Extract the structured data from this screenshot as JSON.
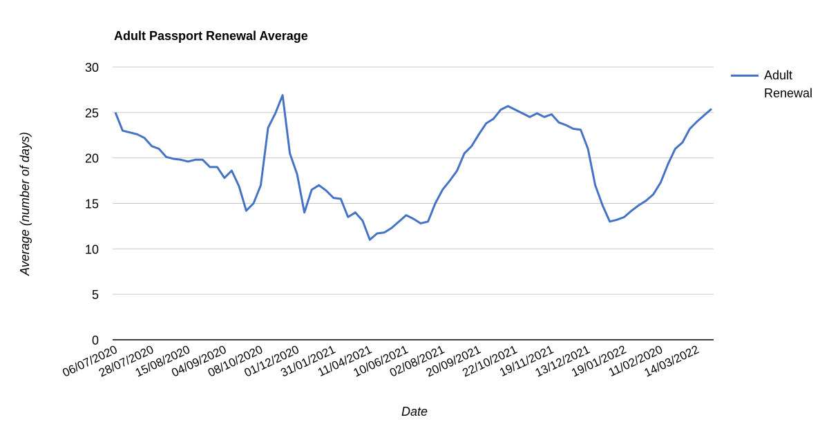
{
  "chart_data": {
    "type": "line",
    "title": "Adult Passport Renewal Average",
    "x_label": "Date",
    "y_label": "Average (number of days)",
    "categories": [
      "06/07/2020",
      null,
      null,
      null,
      null,
      "28/07/2020",
      null,
      null,
      null,
      null,
      "15/08/2020",
      null,
      null,
      null,
      null,
      "04/09/2020",
      null,
      null,
      null,
      null,
      "08/10/2020",
      null,
      null,
      null,
      null,
      "01/12/2020",
      null,
      null,
      null,
      null,
      "31/01/2021",
      null,
      null,
      null,
      null,
      "11/04/2021",
      null,
      null,
      null,
      null,
      "10/06/2021",
      null,
      null,
      null,
      null,
      "02/08/2021",
      null,
      null,
      null,
      null,
      "20/09/2021",
      null,
      null,
      null,
      null,
      "22/10/2021",
      null,
      null,
      null,
      null,
      "19/11/2021",
      null,
      null,
      null,
      null,
      "13/12/2021",
      null,
      null,
      null,
      null,
      "19/01/2022",
      null,
      null,
      null,
      null,
      "11/02/2020",
      null,
      null,
      null,
      null,
      "14/03/2022",
      null,
      null
    ],
    "series": [
      {
        "name": "Adult Renewal",
        "color": "#4472c4",
        "values": [
          25.0,
          23.0,
          22.8,
          22.6,
          22.2,
          21.3,
          21.0,
          20.1,
          19.9,
          19.8,
          19.6,
          19.8,
          19.8,
          19.0,
          19.0,
          17.8,
          18.6,
          16.9,
          14.2,
          15.0,
          17.0,
          23.3,
          24.9,
          26.9,
          20.5,
          18.2,
          14.0,
          16.5,
          17.0,
          16.4,
          15.6,
          15.5,
          13.5,
          14.0,
          13.1,
          11.0,
          11.7,
          11.8,
          12.3,
          13.0,
          13.7,
          13.3,
          12.8,
          13.0,
          15.0,
          16.5,
          17.5,
          18.6,
          20.5,
          21.3,
          22.6,
          23.8,
          24.3,
          25.3,
          25.7,
          25.3,
          24.9,
          24.5,
          24.9,
          24.5,
          24.8,
          23.9,
          23.6,
          23.2,
          23.1,
          21.0,
          17.0,
          14.8,
          13.0,
          13.2,
          13.5,
          14.2,
          14.8,
          15.3,
          16.0,
          17.3,
          19.3,
          21.0,
          21.7,
          23.2,
          24.0,
          24.7,
          25.4
        ]
      }
    ],
    "ylim": [
      0,
      30
    ],
    "yticks": [
      0,
      5,
      10,
      15,
      20,
      25,
      30
    ],
    "grid": true,
    "legend": "right"
  }
}
